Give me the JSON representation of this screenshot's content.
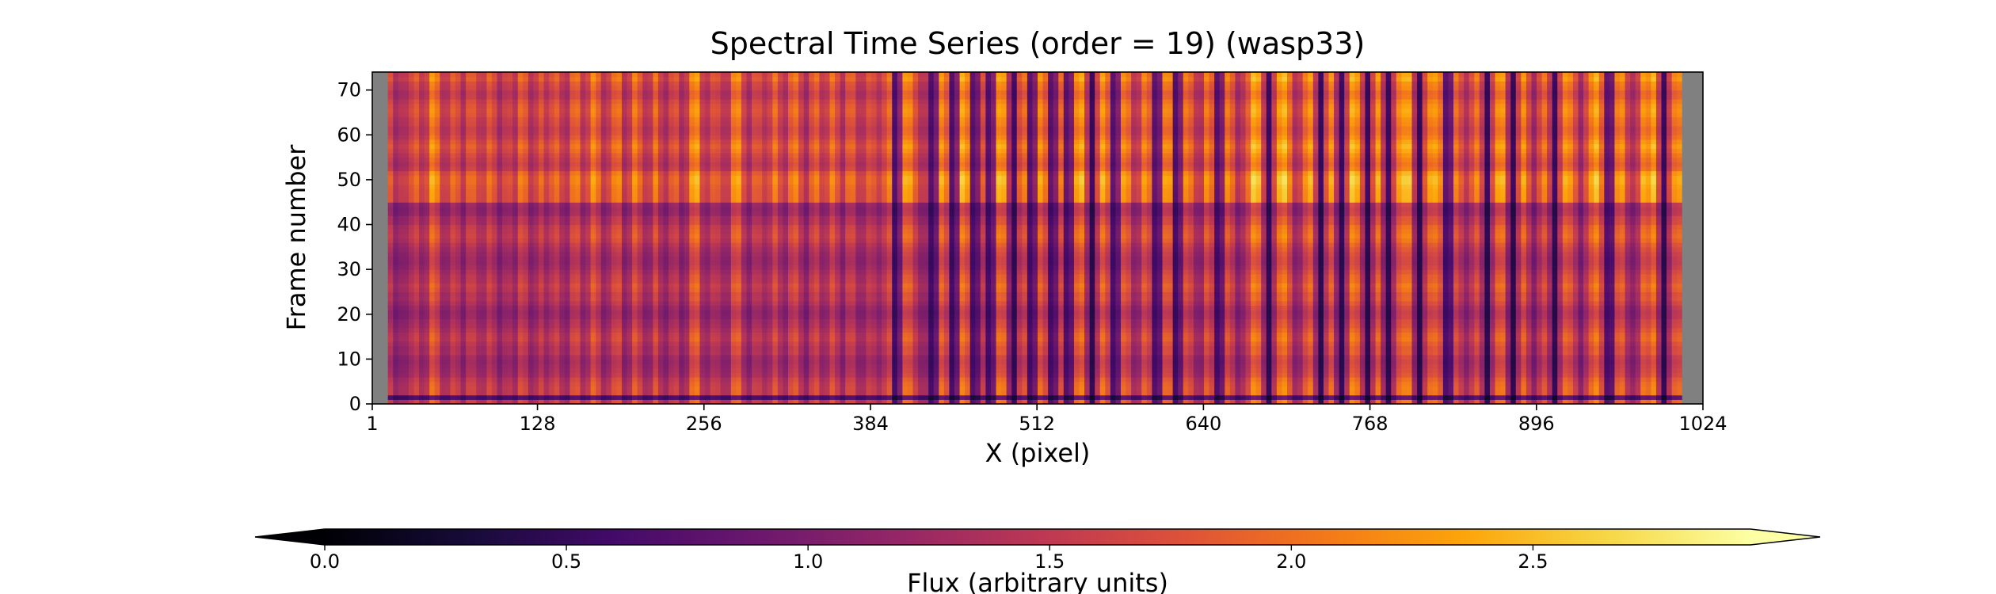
{
  "chart_data": {
    "type": "heatmap",
    "title": "Spectral Time Series (order = 19) (wasp33)",
    "xlabel": "X (pixel)",
    "ylabel": "Frame number",
    "xlim": [
      1,
      1024
    ],
    "ylim": [
      0,
      74
    ],
    "x_ticks": [
      1,
      128,
      256,
      384,
      512,
      640,
      768,
      896,
      1024
    ],
    "y_ticks": [
      0,
      10,
      20,
      30,
      40,
      50,
      60,
      70
    ],
    "masked_columns": [
      [
        1,
        12
      ],
      [
        1010,
        1024
      ]
    ],
    "masked_color": "#808080",
    "frames": 74,
    "colormap": "inferno",
    "colorbar": {
      "label": "Flux (arbitrary units)",
      "range": [
        0.0,
        2.95
      ],
      "ticks": [
        0.0,
        0.5,
        1.0,
        1.5,
        2.0,
        2.5
      ],
      "tick_labels": [
        "0.0",
        "0.5",
        "1.0",
        "1.5",
        "2.0",
        "2.5"
      ],
      "extend": "both"
    },
    "absorption_lines_x": [
      18,
      28,
      40,
      56,
      70,
      84,
      98,
      110,
      124,
      136,
      150,
      164,
      180,
      196,
      212,
      226,
      240,
      258,
      272,
      290,
      304,
      318,
      334,
      348,
      362,
      376,
      390,
      404,
      422,
      432,
      448,
      464,
      476,
      494,
      508,
      524,
      536,
      554,
      572,
      588,
      604,
      620,
      636,
      652,
      668,
      690,
      712,
      730,
      746,
      766,
      782,
      806,
      828,
      842,
      858,
      878,
      894,
      910,
      930,
      952,
      970,
      994
    ],
    "strong_lines_x": [
      404,
      432,
      448,
      464,
      476,
      494,
      508,
      524,
      536,
      554,
      572,
      590,
      604,
      620,
      652,
      690,
      730,
      746,
      766,
      782,
      806,
      828,
      858,
      878,
      910,
      952,
      994
    ]
  }
}
